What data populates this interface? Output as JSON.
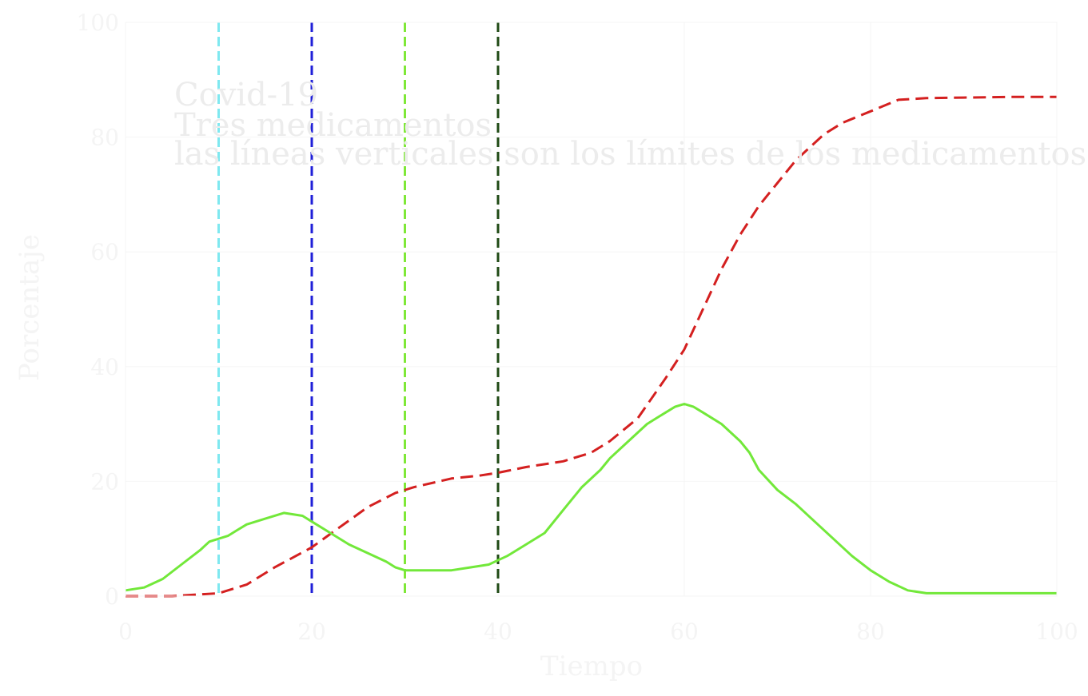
{
  "chart_data": {
    "type": "line",
    "title": [
      "Covid-19",
      "Tres medicamentos",
      "las líneas verticales son los límites de los medicamentos"
    ],
    "xlabel": "Tiempo",
    "ylabel": "Porcentaje",
    "xlim": [
      0,
      100
    ],
    "ylim": [
      0,
      100
    ],
    "xticks": [
      0,
      20,
      40,
      60,
      80,
      100
    ],
    "yticks": [
      0,
      20,
      40,
      60,
      80,
      100
    ],
    "xtick_labels": [
      "0",
      "20",
      "40",
      "60",
      "80",
      "100"
    ],
    "ytick_labels": [
      "0",
      "20",
      "40",
      "60",
      "80",
      "100"
    ],
    "grid": true,
    "vertical_lines": [
      {
        "x": 10,
        "color": "#7fe8f0",
        "style": "dashed"
      },
      {
        "x": 20,
        "color": "#1f1fd8",
        "style": "dashed"
      },
      {
        "x": 30,
        "color": "#7fe838",
        "style": "dashed"
      },
      {
        "x": 40,
        "color": "#1f4a14",
        "style": "dashed"
      }
    ],
    "series": [
      {
        "name": "red-dashed",
        "color": "#d42020",
        "style": "dashed",
        "x": [
          0,
          5,
          10,
          13,
          16,
          20,
          23,
          26,
          29,
          31,
          35,
          38,
          40,
          43,
          47,
          50,
          52,
          55,
          58,
          60,
          62,
          64,
          66,
          68,
          70,
          72,
          75,
          77,
          80,
          83,
          86,
          90,
          95,
          100
        ],
        "y": [
          0,
          0,
          0.5,
          2,
          5,
          8.5,
          12,
          15.5,
          18,
          19,
          20.5,
          21,
          21.5,
          22.5,
          23.5,
          25,
          27,
          31,
          38,
          43,
          50,
          57,
          63,
          68,
          72,
          76,
          80.5,
          82.5,
          84.5,
          86.5,
          86.8,
          86.9,
          87,
          87
        ]
      },
      {
        "name": "green-solid",
        "color": "#72e83a",
        "style": "solid",
        "x": [
          0,
          2,
          4,
          6,
          8,
          9,
          10,
          11,
          12,
          13,
          15,
          17,
          19,
          20,
          22,
          24,
          26,
          28,
          29,
          30,
          33,
          35,
          37,
          39,
          41,
          43,
          45,
          47,
          49,
          51,
          52,
          54,
          56,
          57,
          58,
          59,
          60,
          61,
          62,
          64,
          66,
          67,
          68,
          70,
          72,
          74,
          76,
          78,
          80,
          82,
          84,
          86,
          88,
          90,
          95,
          100
        ],
        "y": [
          1,
          1.5,
          3,
          5.5,
          8,
          9.5,
          10,
          10.5,
          11.5,
          12.5,
          13.5,
          14.5,
          14,
          13,
          11,
          9,
          7.5,
          6,
          5,
          4.5,
          4.5,
          4.5,
          5,
          5.5,
          7,
          9,
          11,
          15,
          19,
          22,
          24,
          27,
          30,
          31,
          32,
          33,
          33.5,
          33,
          32,
          30,
          27,
          25,
          22,
          18.5,
          16,
          13,
          10,
          7,
          4.5,
          2.5,
          1,
          0.5,
          0.5,
          0.5,
          0.5,
          0.5
        ]
      }
    ]
  }
}
